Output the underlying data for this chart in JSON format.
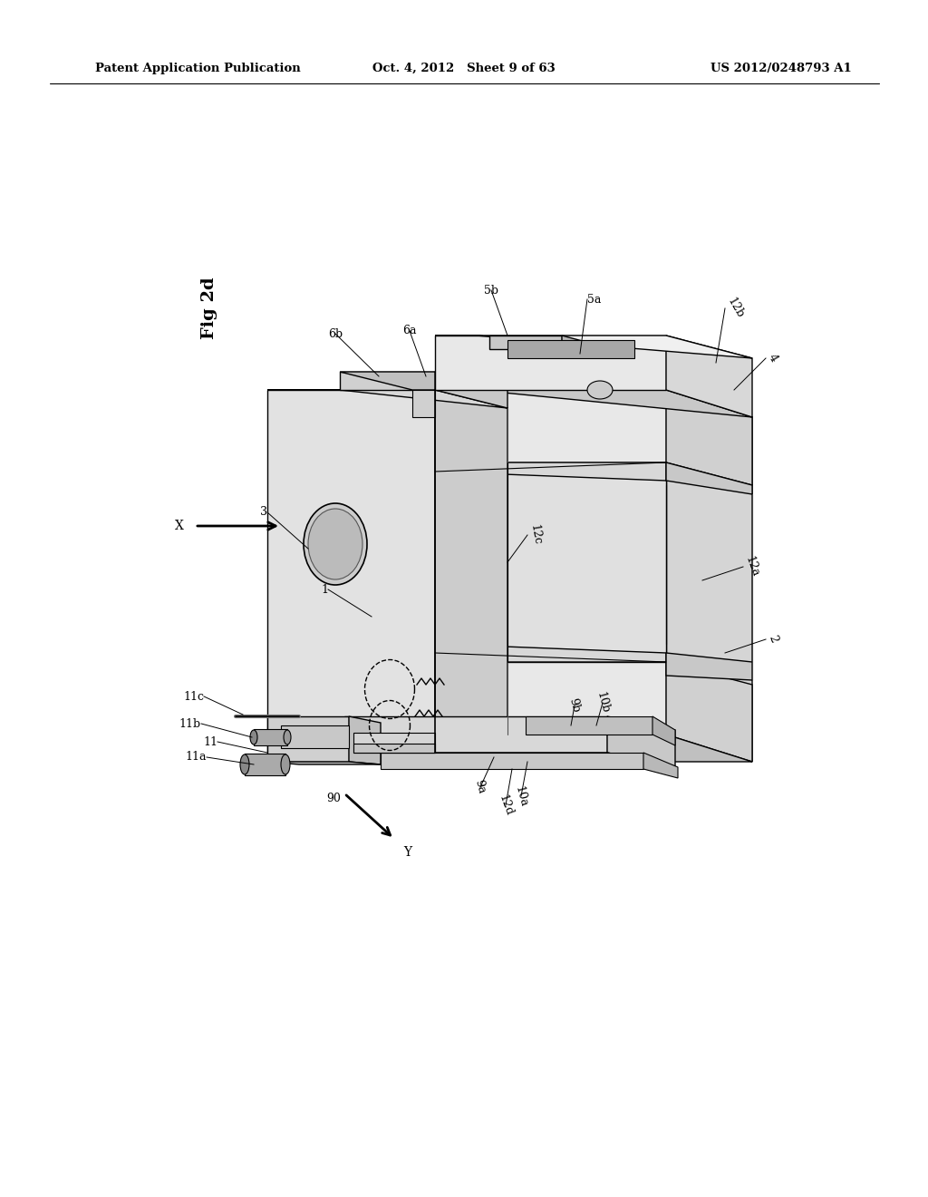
{
  "background_color": "#ffffff",
  "header_left": "Patent Application Publication",
  "header_center": "Oct. 4, 2012   Sheet 9 of 63",
  "header_right": "US 2012/0248793 A1",
  "fig_label": "Fig 2d",
  "page_width": 10.24,
  "page_height": 13.2,
  "dpi": 100,
  "line_color": "#000000",
  "face_light": "#e8e8e8",
  "face_mid": "#d0d0d0",
  "face_dark": "#b8b8b8",
  "face_top": "#c8c8c8"
}
